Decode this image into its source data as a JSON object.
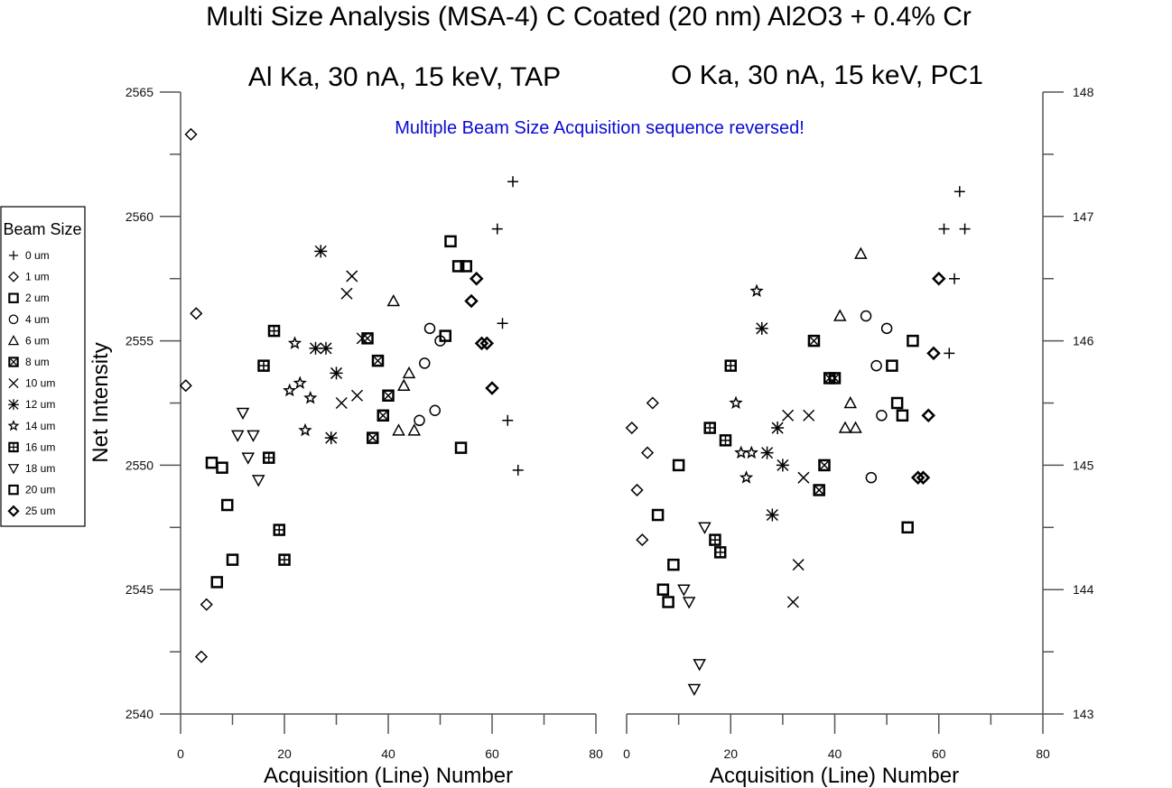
{
  "chart_data": [
    {
      "type": "scatter",
      "title": "Multi Size Analysis (MSA-4) C Coated (20 nm) Al2O3 + 0.4% Cr",
      "subtitle": "Al Ka, 30 nA, 15 keV, TAP",
      "annotation": "Multiple Beam Size Acquisition sequence reversed!",
      "xlabel": "Acquisition (Line) Number",
      "ylabel": "Net Intensity",
      "xlim": [
        0,
        80
      ],
      "ylim": [
        2540,
        2565
      ],
      "xticks": [
        0,
        20,
        40,
        60,
        80
      ],
      "yticks": [
        2540,
        2545,
        2550,
        2555,
        2560,
        2565
      ],
      "grid": false,
      "legend": "left",
      "series": [
        {
          "name": "0 um",
          "marker": "plus",
          "x": [
            64,
            61,
            62,
            63,
            65
          ],
          "y": [
            2561.4,
            2559.5,
            2555.7,
            2551.8,
            2549.8
          ]
        },
        {
          "name": "1 um",
          "marker": "diamond",
          "x": [
            2,
            3,
            1,
            5,
            4
          ],
          "y": [
            2563.3,
            2556.1,
            2553.2,
            2544.4,
            2542.3
          ]
        },
        {
          "name": "2 um",
          "marker": "square",
          "x": [
            6,
            8,
            9,
            10,
            7
          ],
          "y": [
            2550.1,
            2549.9,
            2548.4,
            2546.2,
            2545.3
          ]
        },
        {
          "name": "4 um",
          "marker": "circle",
          "x": [
            48,
            50,
            47,
            49,
            46
          ],
          "y": [
            2555.5,
            2555.0,
            2554.1,
            2552.2,
            2551.8
          ]
        },
        {
          "name": "6 um",
          "marker": "triangle-up",
          "x": [
            41,
            44,
            43,
            42,
            45
          ],
          "y": [
            2556.6,
            2553.7,
            2553.2,
            2551.4,
            2551.4
          ]
        },
        {
          "name": "8 um",
          "marker": "square-x",
          "x": [
            36,
            38,
            40,
            39,
            37
          ],
          "y": [
            2555.1,
            2554.2,
            2552.8,
            2552.0,
            2551.1
          ]
        },
        {
          "name": "10 um",
          "marker": "x",
          "x": [
            33,
            32,
            35,
            34,
            31
          ],
          "y": [
            2557.6,
            2556.9,
            2555.1,
            2552.8,
            2552.5
          ]
        },
        {
          "name": "12 um",
          "marker": "asterisk",
          "x": [
            27,
            26,
            28,
            30,
            29
          ],
          "y": [
            2558.6,
            2554.7,
            2554.7,
            2553.7,
            2551.1
          ]
        },
        {
          "name": "14 um",
          "marker": "star",
          "x": [
            22,
            23,
            21,
            25,
            24
          ],
          "y": [
            2554.9,
            2553.3,
            2553.0,
            2552.7,
            2551.4
          ]
        },
        {
          "name": "16 um",
          "marker": "square-plus",
          "x": [
            18,
            16,
            17,
            19,
            20
          ],
          "y": [
            2555.4,
            2554.0,
            2550.3,
            2547.4,
            2546.2
          ]
        },
        {
          "name": "18 um",
          "marker": "triangle-down",
          "x": [
            12,
            11,
            14,
            13,
            15
          ],
          "y": [
            2552.1,
            2551.2,
            2551.2,
            2550.3,
            2549.4
          ]
        },
        {
          "name": "20 um",
          "marker": "square-bold",
          "x": [
            52,
            53.5,
            55,
            51,
            54
          ],
          "y": [
            2559.0,
            2558.0,
            2558.0,
            2555.2,
            2550.7
          ]
        },
        {
          "name": "25 um",
          "marker": "diamond-bold",
          "x": [
            57,
            56,
            58,
            59,
            60
          ],
          "y": [
            2557.5,
            2556.6,
            2554.9,
            2554.9,
            2553.1
          ]
        }
      ]
    },
    {
      "type": "scatter",
      "subtitle": "O Ka, 30 nA, 15 keV, PC1",
      "xlabel": "Acquisition (Line) Number",
      "ylabel": "",
      "xlim": [
        0,
        80
      ],
      "ylim": [
        143,
        148
      ],
      "xticks": [
        0,
        20,
        40,
        60,
        80
      ],
      "yticks": [
        143,
        144,
        145,
        146,
        147,
        148
      ],
      "grid": false,
      "series": [
        {
          "name": "0 um",
          "marker": "plus",
          "x": [
            64,
            65,
            61,
            63,
            62
          ],
          "y": [
            147.2,
            146.9,
            146.9,
            146.5,
            145.9
          ]
        },
        {
          "name": "1 um",
          "marker": "diamond",
          "x": [
            5,
            1,
            4,
            2,
            3
          ],
          "y": [
            145.5,
            145.3,
            145.1,
            144.8,
            144.4
          ]
        },
        {
          "name": "2 um",
          "marker": "square",
          "x": [
            10,
            6,
            9,
            7,
            8
          ],
          "y": [
            145.0,
            144.6,
            144.2,
            144.0,
            143.9
          ]
        },
        {
          "name": "4 um",
          "marker": "circle",
          "x": [
            46,
            50,
            48,
            49,
            47
          ],
          "y": [
            146.2,
            146.1,
            145.8,
            145.4,
            144.9
          ]
        },
        {
          "name": "6 um",
          "marker": "triangle-up",
          "x": [
            45,
            41,
            43,
            42,
            44
          ],
          "y": [
            146.7,
            146.2,
            145.5,
            145.3,
            145.3
          ]
        },
        {
          "name": "8 um",
          "marker": "square-x",
          "x": [
            36,
            39,
            40,
            38,
            37
          ],
          "y": [
            146.0,
            145.7,
            145.7,
            145.0,
            144.8
          ]
        },
        {
          "name": "10 um",
          "marker": "x",
          "x": [
            31,
            35,
            34,
            33,
            32
          ],
          "y": [
            145.4,
            145.4,
            144.9,
            144.2,
            143.9
          ]
        },
        {
          "name": "12 um",
          "marker": "asterisk",
          "x": [
            26,
            29,
            27,
            30,
            28
          ],
          "y": [
            146.1,
            145.3,
            145.1,
            145.0,
            144.6
          ]
        },
        {
          "name": "14 um",
          "marker": "star",
          "x": [
            25,
            21,
            22,
            24,
            23
          ],
          "y": [
            146.4,
            145.5,
            145.1,
            145.1,
            144.9
          ]
        },
        {
          "name": "16 um",
          "marker": "square-plus",
          "x": [
            20,
            16,
            19,
            17,
            18
          ],
          "y": [
            145.8,
            145.3,
            145.2,
            144.4,
            144.3
          ]
        },
        {
          "name": "18 um",
          "marker": "triangle-down",
          "x": [
            15,
            11,
            12,
            14,
            13
          ],
          "y": [
            144.5,
            144.0,
            143.9,
            143.4,
            143.2
          ]
        },
        {
          "name": "20 um",
          "marker": "square-bold",
          "x": [
            55,
            51,
            52,
            53,
            54
          ],
          "y": [
            146.0,
            145.8,
            145.5,
            145.4,
            144.5
          ]
        },
        {
          "name": "25 um",
          "marker": "diamond-bold",
          "x": [
            60,
            59,
            58,
            56,
            57
          ],
          "y": [
            146.5,
            145.9,
            145.4,
            144.9,
            144.9
          ]
        }
      ]
    }
  ],
  "legend": {
    "title": "Beam Size",
    "items": [
      "0 um",
      "1 um",
      "2 um",
      "4 um",
      "6 um",
      "8 um",
      "10 um",
      "12 um",
      "14 um",
      "16 um",
      "18 um",
      "20 um",
      "25 um"
    ]
  },
  "colors": {
    "annotation": "#0a0ad4",
    "marker": "#000000",
    "axis": "#555555"
  }
}
